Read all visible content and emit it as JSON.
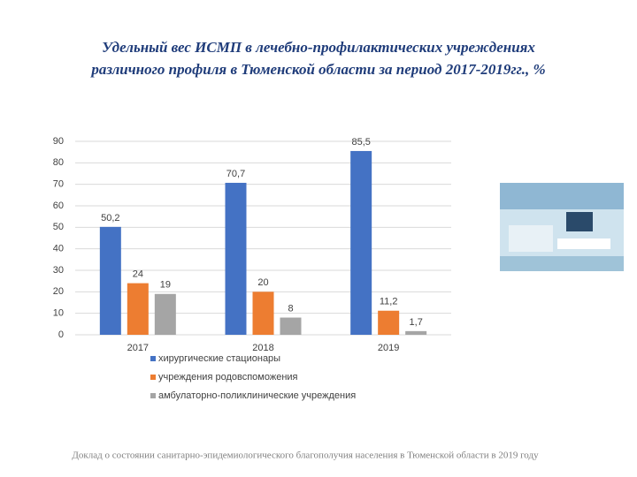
{
  "chart_data": {
    "type": "bar",
    "title": [
      "Удельный вес ИСМП в лечебно-профилактических учреждениях",
      "различного профиля в Тюменской области за период 2017-2019гг., %"
    ],
    "categories": [
      "2017",
      "2018",
      "2019"
    ],
    "series": [
      {
        "name": "хирургические стационары",
        "color": "#4472c4",
        "values": [
          50.2,
          70.7,
          85.5
        ],
        "value_labels": [
          "50,2",
          "70,7",
          "85,5"
        ]
      },
      {
        "name": "учреждения родовспоможения",
        "color": "#ed7d31",
        "values": [
          24,
          20,
          11.2
        ],
        "value_labels": [
          "24",
          "20",
          "11,2"
        ]
      },
      {
        "name": "амбулаторно-поликлинические учреждения",
        "color": "#a5a5a5",
        "values": [
          19,
          8,
          1.7
        ],
        "value_labels": [
          "19",
          "8",
          "1,7"
        ]
      }
    ],
    "ylim": [
      0,
      90
    ],
    "yticks": [
      0,
      10,
      20,
      30,
      40,
      50,
      60,
      70,
      80,
      90
    ],
    "grid": true,
    "source": "Доклад о состоянии санитарно-эпидемиологического благополучия населения в Тюменской области в 2019 году"
  }
}
